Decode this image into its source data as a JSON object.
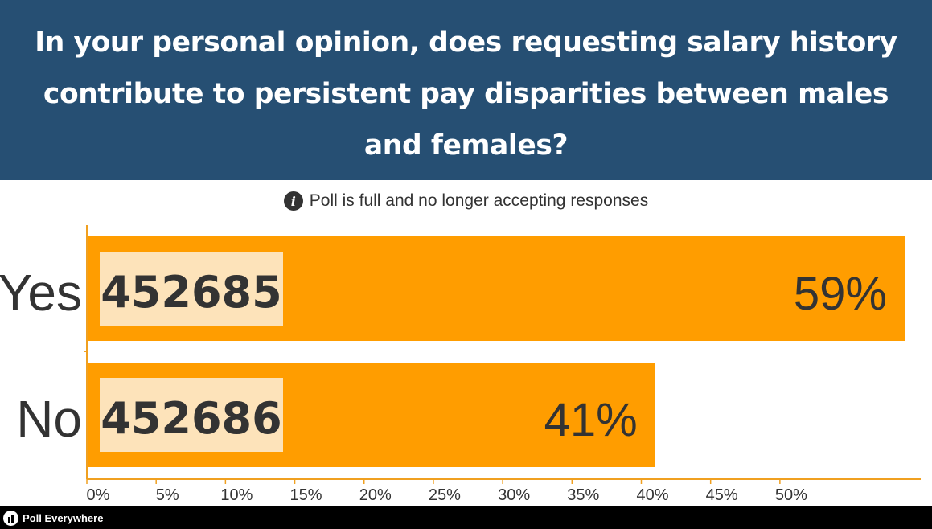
{
  "header": {
    "question": "In your personal opinion, does requesting salary history contribute to persistent pay disparities between males and females?"
  },
  "status": {
    "icon": "info-icon",
    "text": "Poll is full and no longer accepting responses"
  },
  "colors": {
    "header_bg": "#264f73",
    "bar": "#ff9d00",
    "code_box": "#fde3ba",
    "axis": "#f0a020",
    "text": "#333333"
  },
  "chart_data": {
    "type": "bar",
    "orientation": "horizontal",
    "categories": [
      "Yes",
      "No"
    ],
    "codes": [
      "452685",
      "452686"
    ],
    "values": [
      59,
      41
    ],
    "value_labels": [
      "59%",
      "41%"
    ],
    "xlim": [
      0,
      59
    ],
    "xticks": [
      "0%",
      "5%",
      "10%",
      "15%",
      "20%",
      "25%",
      "30%",
      "35%",
      "40%",
      "45%",
      "50%"
    ],
    "xtick_values": [
      0,
      5,
      10,
      15,
      20,
      25,
      30,
      35,
      40,
      45,
      50
    ]
  },
  "footer": {
    "brand": "Poll Everywhere",
    "icon": "poll-everywhere-logo-icon"
  }
}
